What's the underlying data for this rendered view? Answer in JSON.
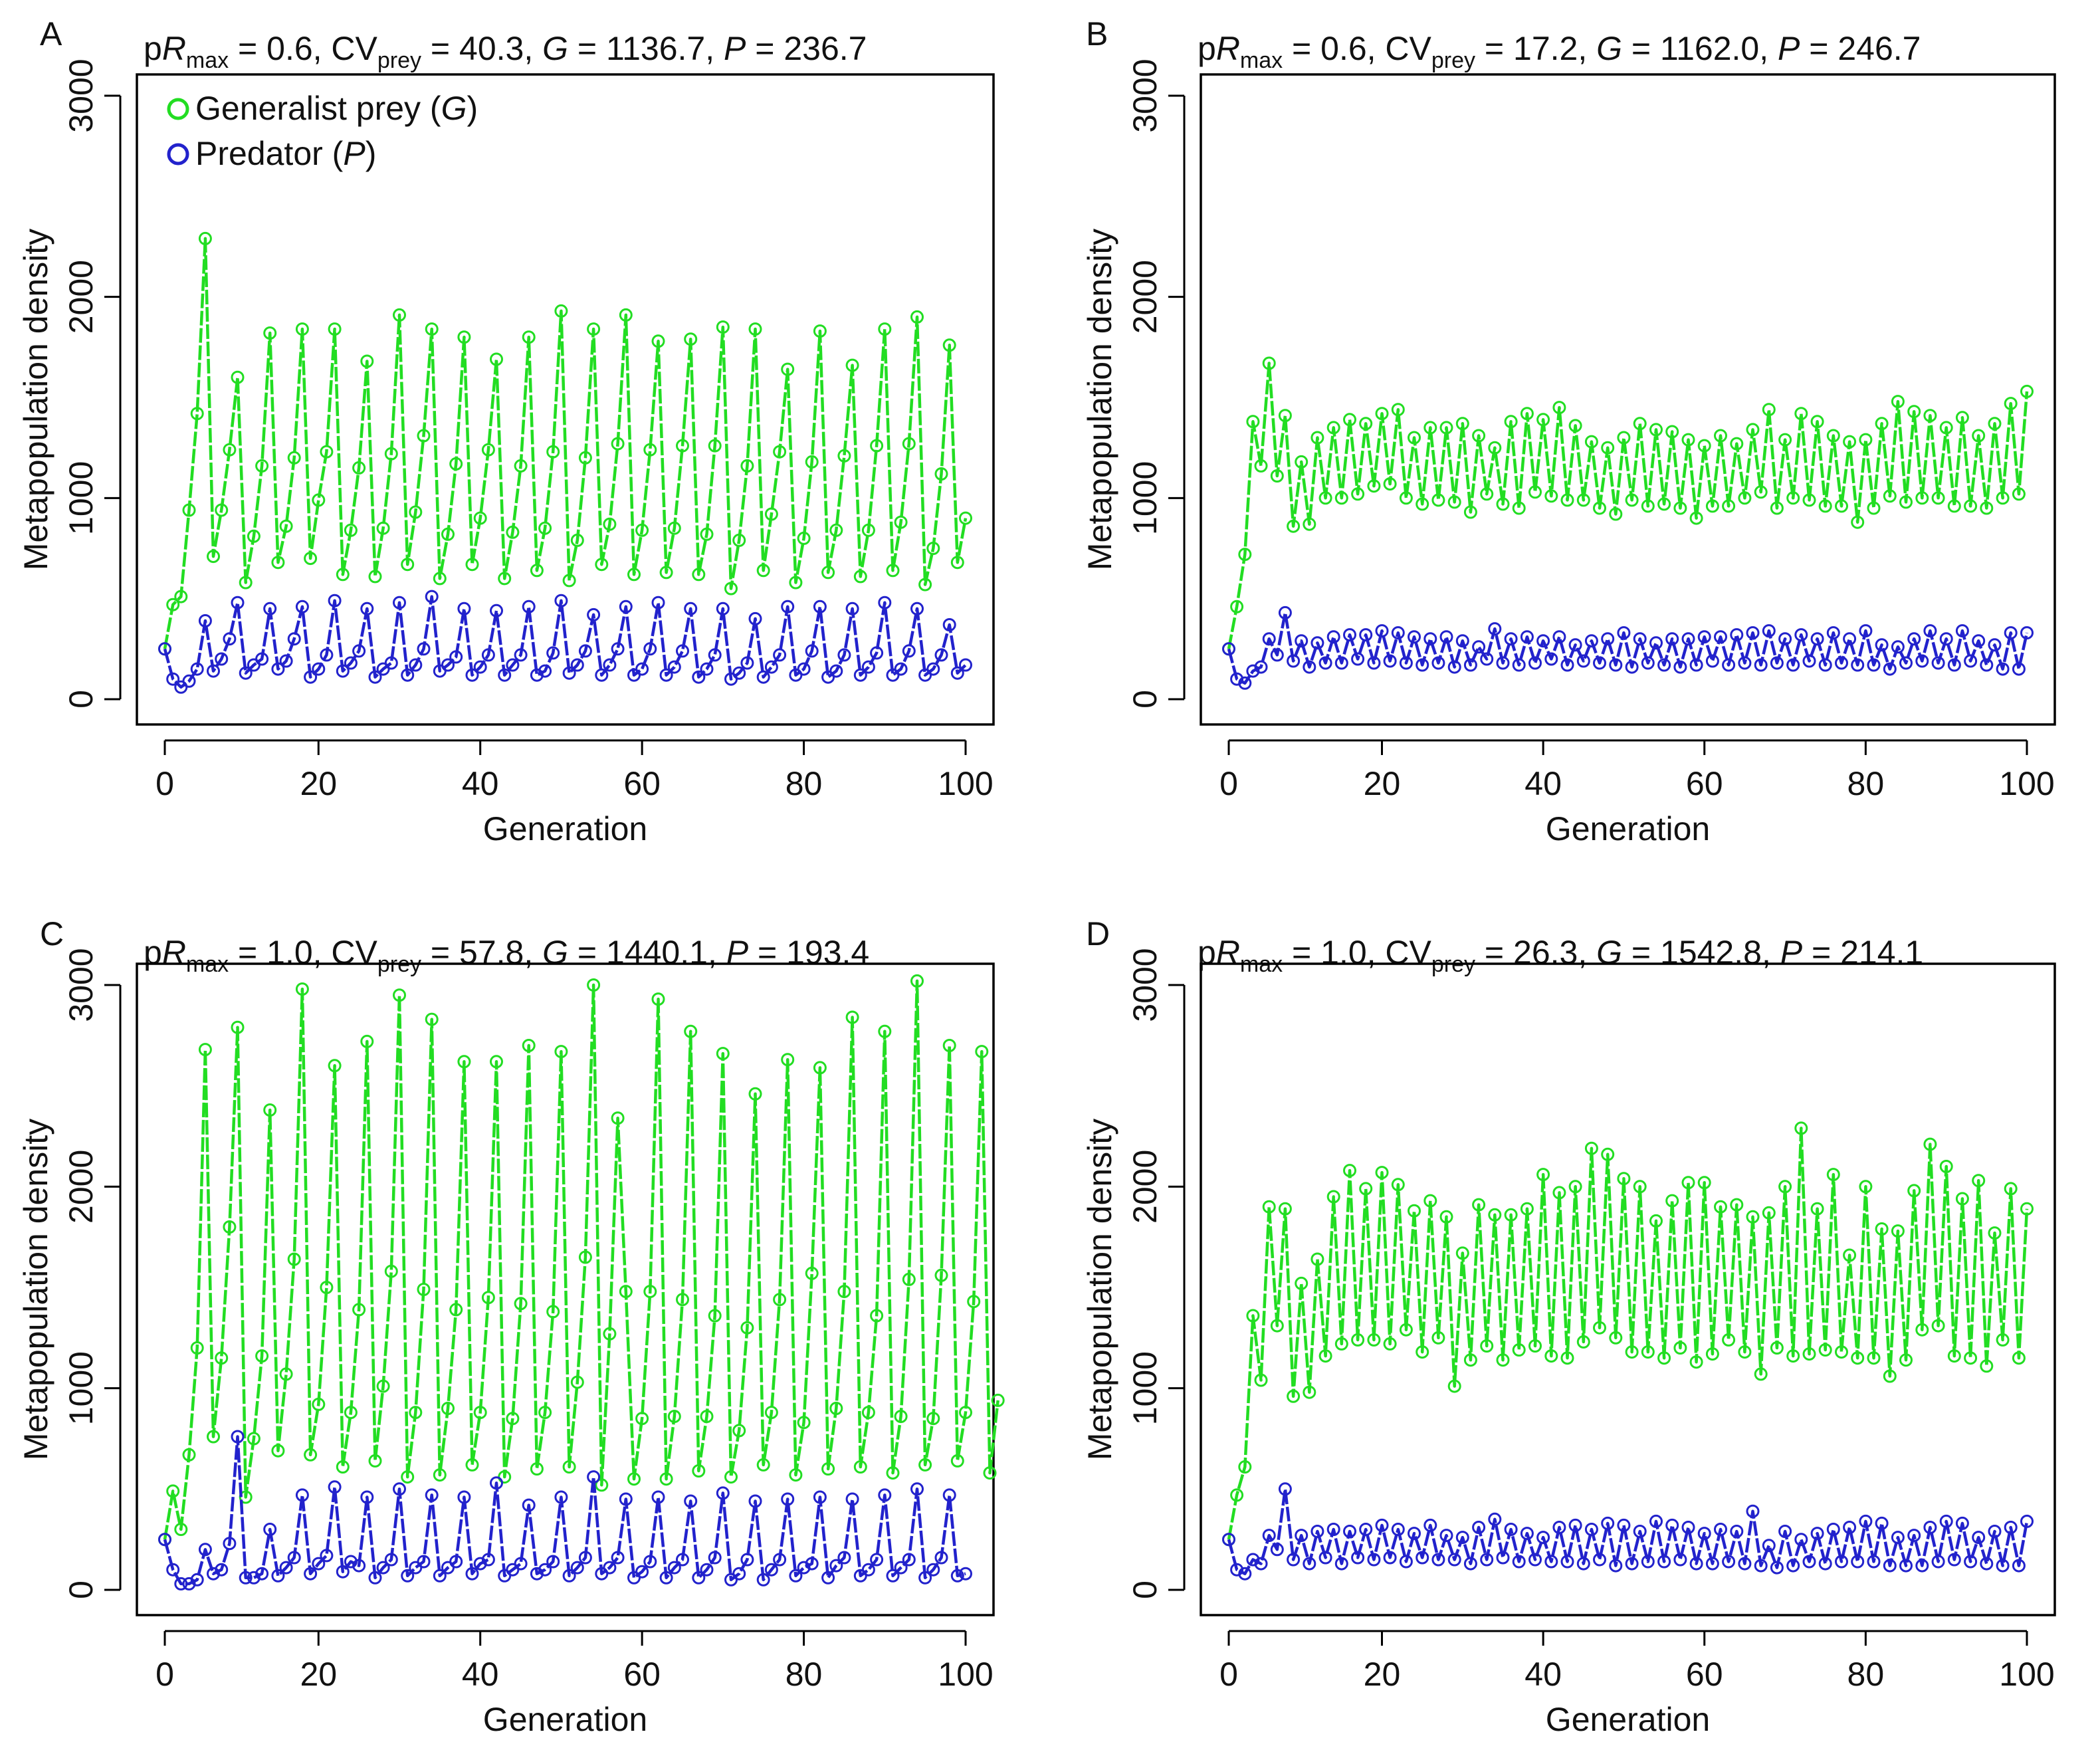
{
  "chart_data": [
    {
      "panel_label": "A",
      "type": "line",
      "title_parts": {
        "p": "p",
        "R": "R",
        "max": "max",
        "pr_val": " = 0.6, CV",
        "prey": "prey",
        "cv_val": " = 40.3, ",
        "G": "G",
        "g_val": " = 1136.7, ",
        "P": "P",
        "p_val": " = 236.7"
      },
      "xlabel": "Generation",
      "ylabel": "Metapopulation density",
      "xlim": [
        1,
        100
      ],
      "ylim": [
        0,
        3000
      ],
      "xticks": [
        0,
        20,
        40,
        60,
        80,
        100
      ],
      "yticks": [
        0,
        1000,
        2000,
        3000
      ],
      "legend": {
        "position": "top-left",
        "entries": [
          {
            "series": 0,
            "text": "Generalist prey (",
            "sym": "G",
            "close": ")"
          },
          {
            "series": 1,
            "text": "Predator (",
            "sym": "P",
            "close": ")"
          }
        ]
      },
      "series": [
        {
          "name": "Generalist prey",
          "color": "#22dd22",
          "values": [
            250,
            470,
            510,
            940,
            1420,
            2290,
            710,
            940,
            1240,
            1600,
            580,
            810,
            1160,
            1820,
            680,
            860,
            1200,
            1840,
            700,
            990,
            1230,
            1840,
            620,
            840,
            1150,
            1680,
            610,
            850,
            1220,
            1910,
            670,
            930,
            1310,
            1840,
            600,
            820,
            1170,
            1800,
            670,
            900,
            1240,
            1690,
            600,
            830,
            1160,
            1800,
            640,
            850,
            1230,
            1930,
            590,
            790,
            1200,
            1840,
            670,
            870,
            1270,
            1910,
            620,
            840,
            1240,
            1780,
            630,
            850,
            1260,
            1790,
            620,
            820,
            1260,
            1850,
            550,
            790,
            1160,
            1840,
            640,
            920,
            1230,
            1640,
            580,
            800,
            1180,
            1830,
            630,
            840,
            1210,
            1660,
            610,
            840,
            1260,
            1840,
            640,
            880,
            1270,
            1900,
            570,
            750,
            1120,
            1760,
            680,
            900
          ]
        },
        {
          "name": "Predator",
          "color": "#2222cc",
          "values": [
            250,
            100,
            60,
            90,
            150,
            390,
            140,
            200,
            300,
            480,
            130,
            170,
            200,
            450,
            150,
            190,
            300,
            460,
            110,
            150,
            220,
            490,
            140,
            180,
            240,
            450,
            110,
            150,
            180,
            480,
            120,
            170,
            250,
            510,
            140,
            170,
            210,
            450,
            120,
            160,
            220,
            440,
            120,
            170,
            220,
            460,
            120,
            140,
            230,
            490,
            130,
            170,
            240,
            420,
            120,
            170,
            250,
            460,
            120,
            150,
            250,
            480,
            120,
            160,
            240,
            450,
            110,
            150,
            220,
            450,
            100,
            130,
            180,
            400,
            110,
            160,
            220,
            460,
            120,
            150,
            240,
            460,
            110,
            140,
            220,
            450,
            120,
            160,
            230,
            480,
            120,
            150,
            240,
            450,
            120,
            150,
            220,
            370,
            130,
            170
          ]
        }
      ]
    },
    {
      "panel_label": "B",
      "type": "line",
      "title_parts": {
        "p": "p",
        "R": "R",
        "max": "max",
        "pr_val": " = 0.6, CV",
        "prey": "prey",
        "cv_val": " = 17.2, ",
        "G": "G",
        "g_val": " = 1162.0, ",
        "P": "P",
        "p_val": " = 246.7"
      },
      "xlabel": "Generation",
      "ylabel": "Metapopulation density",
      "xlim": [
        1,
        100
      ],
      "ylim": [
        0,
        3000
      ],
      "xticks": [
        0,
        20,
        40,
        60,
        80,
        100
      ],
      "yticks": [
        0,
        1000,
        2000,
        3000
      ],
      "series": [
        {
          "name": "Generalist prey",
          "color": "#22dd22",
          "values": [
            250,
            460,
            720,
            1380,
            1160,
            1670,
            1110,
            1410,
            860,
            1180,
            870,
            1300,
            1000,
            1350,
            1000,
            1390,
            1020,
            1370,
            1060,
            1420,
            1070,
            1440,
            1000,
            1300,
            970,
            1350,
            990,
            1350,
            980,
            1370,
            930,
            1310,
            1020,
            1250,
            970,
            1380,
            950,
            1420,
            1030,
            1390,
            1010,
            1450,
            990,
            1360,
            990,
            1280,
            950,
            1250,
            920,
            1300,
            990,
            1370,
            960,
            1340,
            970,
            1330,
            950,
            1290,
            900,
            1260,
            960,
            1310,
            960,
            1270,
            1000,
            1340,
            1030,
            1440,
            950,
            1290,
            1000,
            1420,
            990,
            1380,
            960,
            1310,
            960,
            1280,
            880,
            1290,
            950,
            1370,
            1010,
            1480,
            980,
            1430,
            1000,
            1410,
            1000,
            1350,
            960,
            1400,
            960,
            1310,
            950,
            1370,
            1000,
            1470,
            1020,
            1530
          ]
        },
        {
          "name": "Predator",
          "color": "#2222cc",
          "values": [
            250,
            100,
            80,
            140,
            160,
            300,
            220,
            430,
            190,
            290,
            160,
            280,
            180,
            310,
            180,
            320,
            200,
            320,
            180,
            340,
            190,
            330,
            180,
            310,
            170,
            300,
            180,
            310,
            160,
            290,
            170,
            260,
            200,
            350,
            180,
            300,
            170,
            310,
            180,
            290,
            200,
            310,
            170,
            270,
            190,
            290,
            180,
            300,
            170,
            330,
            160,
            300,
            180,
            280,
            170,
            300,
            160,
            300,
            170,
            310,
            190,
            310,
            170,
            320,
            180,
            330,
            170,
            340,
            180,
            300,
            170,
            320,
            190,
            300,
            170,
            330,
            180,
            300,
            170,
            340,
            170,
            270,
            150,
            260,
            180,
            300,
            190,
            340,
            180,
            300,
            170,
            340,
            190,
            290,
            170,
            270,
            150,
            330,
            150,
            330
          ]
        }
      ]
    },
    {
      "panel_label": "C",
      "type": "line",
      "title_parts": {
        "p": "p",
        "R": "R",
        "max": "max",
        "pr_val": " = 1.0, CV",
        "prey": "prey",
        "cv_val": " = 57.8, ",
        "G": "G",
        "g_val": " = 1440.1, ",
        "P": "P",
        "p_val": " = 193.4"
      },
      "xlabel": "Generation",
      "ylabel": "Metapopulation density",
      "xlim": [
        1,
        100
      ],
      "ylim": [
        0,
        3000
      ],
      "xticks": [
        0,
        20,
        40,
        60,
        80,
        100
      ],
      "yticks": [
        0,
        1000,
        2000,
        3000
      ],
      "series": [
        {
          "name": "Generalist prey",
          "color": "#22dd22",
          "values": [
            250,
            490,
            300,
            670,
            1200,
            2680,
            760,
            1150,
            1800,
            2790,
            460,
            750,
            1160,
            2380,
            690,
            1070,
            1640,
            2980,
            670,
            920,
            1500,
            2600,
            610,
            880,
            1390,
            2720,
            640,
            1010,
            1580,
            2950,
            560,
            880,
            1490,
            2830,
            570,
            900,
            1390,
            2620,
            620,
            880,
            1450,
            2620,
            560,
            850,
            1420,
            2700,
            600,
            880,
            1380,
            2670,
            610,
            1030,
            1650,
            3000,
            520,
            1270,
            2340,
            1480,
            550,
            850,
            1480,
            2930,
            550,
            860,
            1440,
            2770,
            590,
            860,
            1360,
            2660,
            560,
            790,
            1300,
            2460,
            620,
            880,
            1440,
            2630,
            570,
            830,
            1570,
            2590,
            600,
            900,
            1480,
            2840,
            610,
            880,
            1360,
            2770,
            580,
            860,
            1540,
            3020,
            620,
            850,
            1560,
            2700,
            640,
            880,
            1430,
            2670,
            580,
            940
          ]
        },
        {
          "name": "Predator",
          "color": "#2222cc",
          "values": [
            250,
            100,
            30,
            30,
            50,
            200,
            80,
            100,
            230,
            760,
            60,
            60,
            80,
            300,
            70,
            110,
            160,
            470,
            80,
            130,
            170,
            510,
            90,
            140,
            120,
            460,
            60,
            110,
            150,
            500,
            70,
            110,
            140,
            470,
            70,
            110,
            140,
            460,
            80,
            130,
            150,
            530,
            70,
            100,
            130,
            420,
            80,
            100,
            140,
            460,
            70,
            110,
            160,
            560,
            80,
            110,
            160,
            450,
            60,
            90,
            140,
            460,
            60,
            110,
            150,
            440,
            60,
            100,
            160,
            480,
            50,
            80,
            150,
            440,
            50,
            100,
            150,
            450,
            70,
            110,
            130,
            460,
            60,
            120,
            160,
            450,
            70,
            100,
            150,
            470,
            70,
            110,
            150,
            500,
            60,
            100,
            160,
            470,
            70,
            80
          ]
        }
      ]
    },
    {
      "panel_label": "D",
      "type": "line",
      "title_parts": {
        "p": "p",
        "R": "R",
        "max": "max",
        "pr_val": " = 1.0, CV",
        "prey": "prey",
        "cv_val": " = 26.3, ",
        "G": "G",
        "g_val": " = 1542.8, ",
        "P": "P",
        "p_val": " = 214.1"
      },
      "xlabel": "Generation",
      "ylabel": "Metapopulation density",
      "xlim": [
        1,
        100
      ],
      "ylim": [
        0,
        3000
      ],
      "xticks": [
        0,
        20,
        40,
        60,
        80,
        100
      ],
      "yticks": [
        0,
        1000,
        2000,
        3000
      ],
      "series": [
        {
          "name": "Generalist prey",
          "color": "#22dd22",
          "values": [
            250,
            470,
            610,
            1360,
            1040,
            1900,
            1310,
            1890,
            960,
            1520,
            980,
            1640,
            1160,
            1950,
            1220,
            2080,
            1240,
            1990,
            1240,
            2070,
            1220,
            2010,
            1290,
            1880,
            1180,
            1930,
            1250,
            1850,
            1010,
            1670,
            1140,
            1910,
            1210,
            1860,
            1140,
            1860,
            1190,
            1890,
            1210,
            2060,
            1160,
            1970,
            1150,
            2000,
            1230,
            2190,
            1300,
            2160,
            1250,
            2040,
            1180,
            2000,
            1180,
            1830,
            1150,
            1930,
            1200,
            2020,
            1130,
            2020,
            1170,
            1900,
            1240,
            1910,
            1180,
            1850,
            1070,
            1870,
            1200,
            2000,
            1160,
            2290,
            1170,
            1890,
            1190,
            2060,
            1180,
            1660,
            1150,
            2000,
            1150,
            1790,
            1060,
            1780,
            1140,
            1980,
            1290,
            2210,
            1310,
            2100,
            1160,
            1940,
            1150,
            2030,
            1110,
            1770,
            1240,
            1990,
            1150,
            1890
          ]
        },
        {
          "name": "Predator",
          "color": "#2222cc",
          "values": [
            250,
            100,
            80,
            150,
            130,
            270,
            200,
            500,
            150,
            270,
            130,
            290,
            160,
            300,
            130,
            290,
            160,
            300,
            150,
            320,
            160,
            300,
            140,
            280,
            160,
            320,
            150,
            270,
            150,
            260,
            130,
            310,
            150,
            350,
            160,
            300,
            140,
            280,
            150,
            260,
            140,
            310,
            140,
            320,
            130,
            300,
            150,
            330,
            120,
            320,
            130,
            290,
            140,
            340,
            140,
            320,
            150,
            310,
            130,
            280,
            130,
            300,
            140,
            290,
            130,
            390,
            120,
            220,
            110,
            290,
            120,
            250,
            140,
            280,
            130,
            300,
            140,
            310,
            140,
            340,
            140,
            330,
            120,
            260,
            120,
            270,
            120,
            310,
            140,
            340,
            150,
            330,
            140,
            260,
            130,
            290,
            120,
            310,
            120,
            340
          ]
        }
      ]
    }
  ]
}
